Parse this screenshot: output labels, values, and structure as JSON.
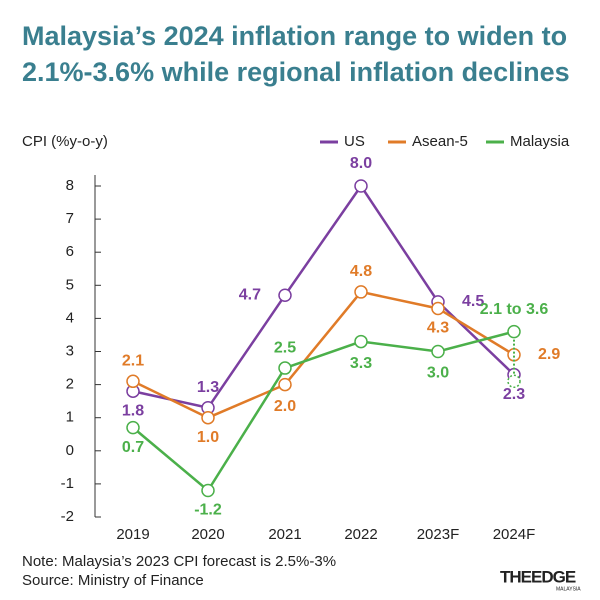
{
  "chart_data": {
    "type": "line",
    "title": "Malaysia’s 2024 inflation range to widen to 2.1%-3.6% while regional inflation declines",
    "y_label": "CPI (%y-o-y)",
    "categories": [
      "2019",
      "2020",
      "2021",
      "2022",
      "2023F",
      "2024F"
    ],
    "series": [
      {
        "name": "US",
        "color": "#7b3fa0",
        "values": [
          1.8,
          1.3,
          4.7,
          8.0,
          4.5,
          2.3
        ],
        "value_labels": [
          "1.8",
          "1.3",
          "4.7",
          "8.0",
          "4.5",
          "2.3"
        ]
      },
      {
        "name": "Asean-5",
        "color": "#e07b28",
        "values": [
          2.1,
          1.0,
          2.0,
          4.8,
          4.3,
          2.9
        ],
        "value_labels": [
          "2.1",
          "1.0",
          "2.0",
          "4.8",
          "4.3",
          "2.9"
        ]
      },
      {
        "name": "Malaysia",
        "color": "#4bb04a",
        "values": [
          0.7,
          -1.2,
          2.5,
          3.3,
          3.0,
          3.6
        ],
        "lows": [
          null,
          null,
          null,
          null,
          null,
          2.1
        ],
        "value_labels": [
          "0.7",
          "-1.2",
          "2.5",
          "3.3",
          "3.0",
          "2.1 to 3.6"
        ]
      }
    ],
    "ylim": [
      -2,
      8
    ],
    "yticks": [
      -2,
      -1,
      0,
      1,
      2,
      3,
      4,
      5,
      6,
      7,
      8
    ],
    "note": "Note: Malaysia’s 2023 CPI forecast is 2.5%-3%",
    "source": "Source: Ministry of Finance",
    "logo": "THEEDGE",
    "logo_sub": "MALAYSIA"
  }
}
